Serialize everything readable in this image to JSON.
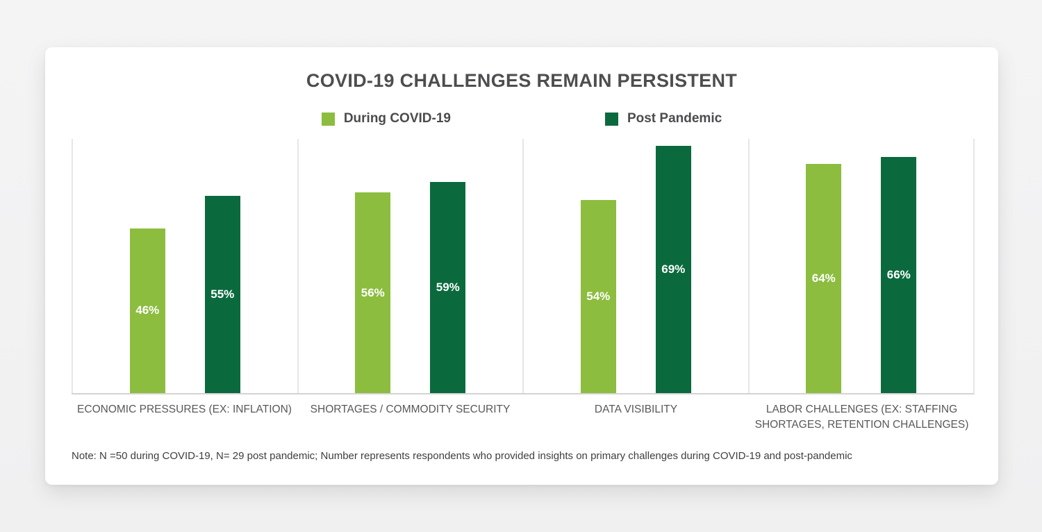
{
  "title": "COVID-19 CHALLENGES REMAIN PERSISTENT",
  "note": "Note: N =50 during COVID-19, N= 29 post pandemic; Number represents respondents who provided insights on primary challenges during COVID-19 and post-pandemic",
  "colors": {
    "during_covid": "#8cbd3f",
    "post_pandemic": "#0a6a3e",
    "title_text": "#4d4e50",
    "category_text": "#57585a",
    "divider": "#e6e6e6",
    "baseline": "#d3d3d3"
  },
  "chart_data": {
    "type": "bar",
    "title": "COVID-19 CHALLENGES REMAIN PERSISTENT",
    "categories": [
      "ECONOMIC PRESSURES (EX: INFLATION)",
      "SHORTAGES / COMMODITY SECURITY",
      "DATA VISIBILITY",
      "LABOR CHALLENGES (EX: STAFFING SHORTAGES, RETENTION CHALLENGES)"
    ],
    "series": [
      {
        "name": "During COVID-19",
        "color": "#8cbd3f",
        "values": [
          46,
          56,
          54,
          64
        ]
      },
      {
        "name": "Post Pandemic",
        "color": "#0a6a3e",
        "values": [
          55,
          59,
          69,
          66
        ]
      }
    ],
    "value_label_format": "{value}%",
    "unit": "%",
    "ylim": [
      0,
      71
    ],
    "grid": false,
    "value_labels_inside_bars": true,
    "legend_position": "top",
    "xlabel": "",
    "ylabel": ""
  }
}
